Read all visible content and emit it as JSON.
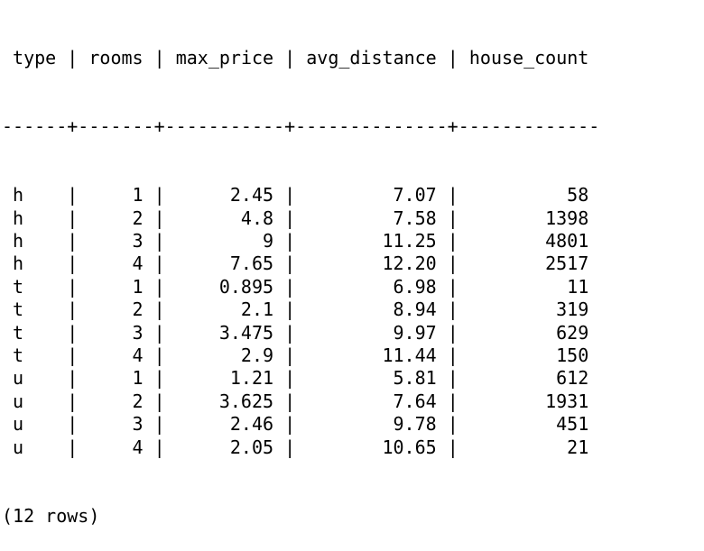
{
  "terminal": {
    "columns": [
      "type",
      "rooms",
      "max_price",
      "avg_distance",
      "house_count"
    ],
    "rows": [
      [
        "h",
        "1",
        "2.45",
        "7.07",
        "58"
      ],
      [
        "h",
        "2",
        "4.8",
        "7.58",
        "1398"
      ],
      [
        "h",
        "3",
        "9",
        "11.25",
        "4801"
      ],
      [
        "h",
        "4",
        "7.65",
        "12.20",
        "2517"
      ],
      [
        "t",
        "1",
        "0.895",
        "6.98",
        "11"
      ],
      [
        "t",
        "2",
        "2.1",
        "8.94",
        "319"
      ],
      [
        "t",
        "3",
        "3.475",
        "9.97",
        "629"
      ],
      [
        "t",
        "4",
        "2.9",
        "11.44",
        "150"
      ],
      [
        "u",
        "1",
        "1.21",
        "5.81",
        "612"
      ],
      [
        "u",
        "2",
        "3.625",
        "7.64",
        "1931"
      ],
      [
        "u",
        "3",
        "2.46",
        "9.78",
        "451"
      ],
      [
        "u",
        "4",
        "2.05",
        "10.65",
        "21"
      ]
    ],
    "footer": "(12 rows)"
  }
}
